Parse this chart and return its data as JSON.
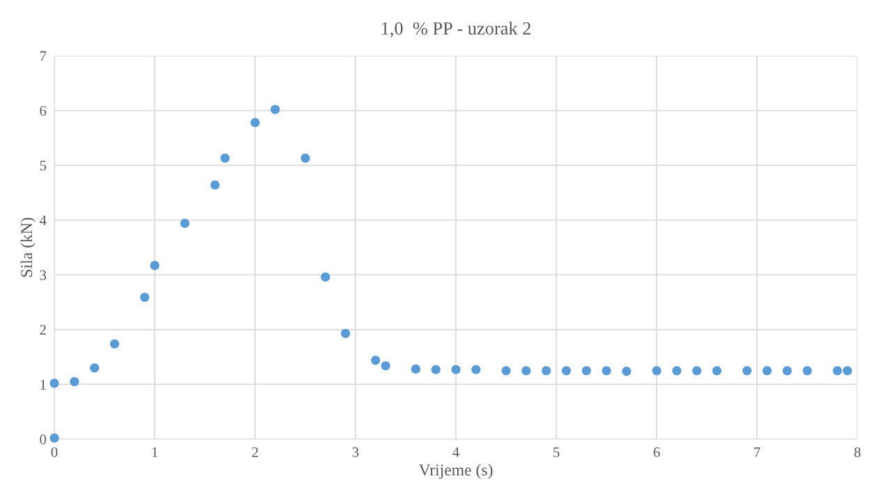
{
  "chart_data": {
    "type": "scatter",
    "title": "1,0  % PP - uzorak 2",
    "xlabel": "Vrijeme (s)",
    "ylabel": "Sila (kN)",
    "x": [
      0,
      0,
      0.2,
      0.4,
      0.6,
      0.9,
      1.0,
      1.3,
      1.6,
      1.7,
      2.0,
      2.2,
      2.5,
      2.7,
      2.9,
      3.2,
      3.3,
      3.6,
      3.8,
      4.0,
      4.2,
      4.5,
      4.7,
      4.9,
      5.1,
      5.3,
      5.5,
      5.7,
      6.0,
      6.2,
      6.4,
      6.6,
      6.9,
      7.1,
      7.3,
      7.5,
      7.8,
      7.9
    ],
    "series": [
      {
        "color": "#5b9bd5",
        "values": [
          0.02,
          1.02,
          1.05,
          1.3,
          1.74,
          2.59,
          3.17,
          3.94,
          4.64,
          5.13,
          5.78,
          6.02,
          5.13,
          2.96,
          1.93,
          1.44,
          1.34,
          1.28,
          1.27,
          1.27,
          1.27,
          1.25,
          1.25,
          1.25,
          1.25,
          1.25,
          1.25,
          1.24,
          1.25,
          1.25,
          1.25,
          1.25,
          1.25,
          1.25,
          1.25,
          1.25,
          1.25,
          1.25
        ]
      }
    ],
    "xlim": [
      0,
      8
    ],
    "xticks": [
      0,
      1,
      2,
      3,
      4,
      5,
      6,
      7,
      8
    ],
    "ylim": [
      0,
      7
    ],
    "yticks": [
      0,
      1,
      2,
      3,
      4,
      5,
      6,
      7
    ],
    "grid": true,
    "marker": "circle"
  }
}
